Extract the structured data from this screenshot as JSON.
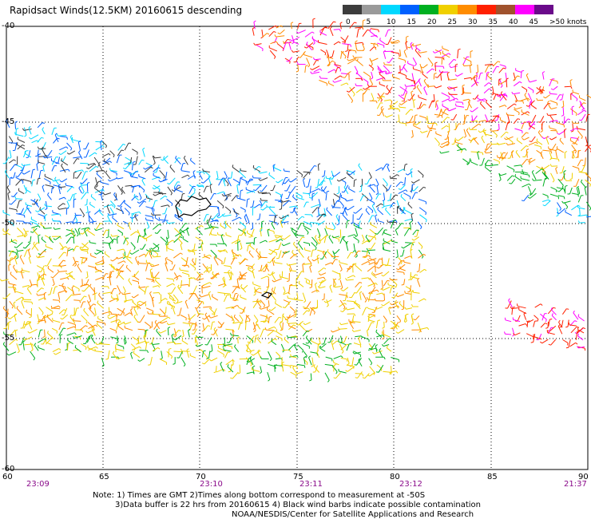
{
  "header": {
    "title": "Rapidsact Winds(12.5KM) 20160615 descending"
  },
  "legend": {
    "labels": [
      "0",
      "5",
      "10",
      "15",
      "20",
      "25",
      "30",
      "35",
      "40",
      "45",
      ">50 knots"
    ],
    "colors": [
      "#3c3c3c",
      "#9a9a9a",
      "#00d8ff",
      "#0060ff",
      "#00b020",
      "#f0d000",
      "#ff8c00",
      "#ff2000",
      "#a0522d",
      "#ff00ff",
      "#6a0a8a"
    ]
  },
  "axes": {
    "lon_ticks": [
      "60",
      "65",
      "70",
      "75",
      "80",
      "85",
      "90"
    ],
    "lat_ticks": [
      "-40",
      "-45",
      "-50",
      "-55",
      "-60"
    ]
  },
  "pass_times": [
    "23:09",
    "23:10",
    "23:11",
    "23:12",
    "21:37"
  ],
  "notes": {
    "line1": "Note: 1) Times are GMT 2)Times along bottom correspond to measurement at -50S",
    "line2": "3)Data buffer is 22 hrs from 20160615 4) Black wind barbs indicate possible contamination",
    "line3": "NOAA/NESDIS/Center for Satellite Applications and Research"
  }
}
